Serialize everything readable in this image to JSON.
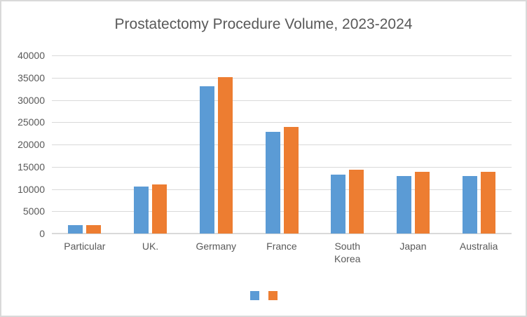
{
  "window": {
    "background": "#ffffff",
    "border_color": "#d9d9d9"
  },
  "chart_data": {
    "type": "bar",
    "title": "Prostatectomy Procedure Volume, 2023-2024",
    "categories": [
      "Particular",
      "UK.",
      "Germany",
      "France",
      "South Korea",
      "Japan",
      "Australia"
    ],
    "series": [
      {
        "label": "",
        "color": "#5B9BD5",
        "values": [
          1950,
          10500,
          33100,
          22900,
          13200,
          12900,
          12900
        ]
      },
      {
        "label": "",
        "color": "#ED7D31",
        "values": [
          1900,
          11000,
          35200,
          23900,
          14400,
          13800,
          13800
        ]
      }
    ],
    "xlabel": "",
    "ylabel": "",
    "ylim": [
      0,
      40000
    ],
    "ytick_step": 5000,
    "ytick_labels": [
      "0",
      "5000",
      "10000",
      "15000",
      "20000",
      "25000",
      "30000",
      "35000",
      "40000"
    ],
    "grid": true,
    "legend_position": "bottom-center",
    "legend_text_visible": false,
    "colors": {
      "text": "#595959",
      "gridline": "#d9d9d9"
    }
  }
}
